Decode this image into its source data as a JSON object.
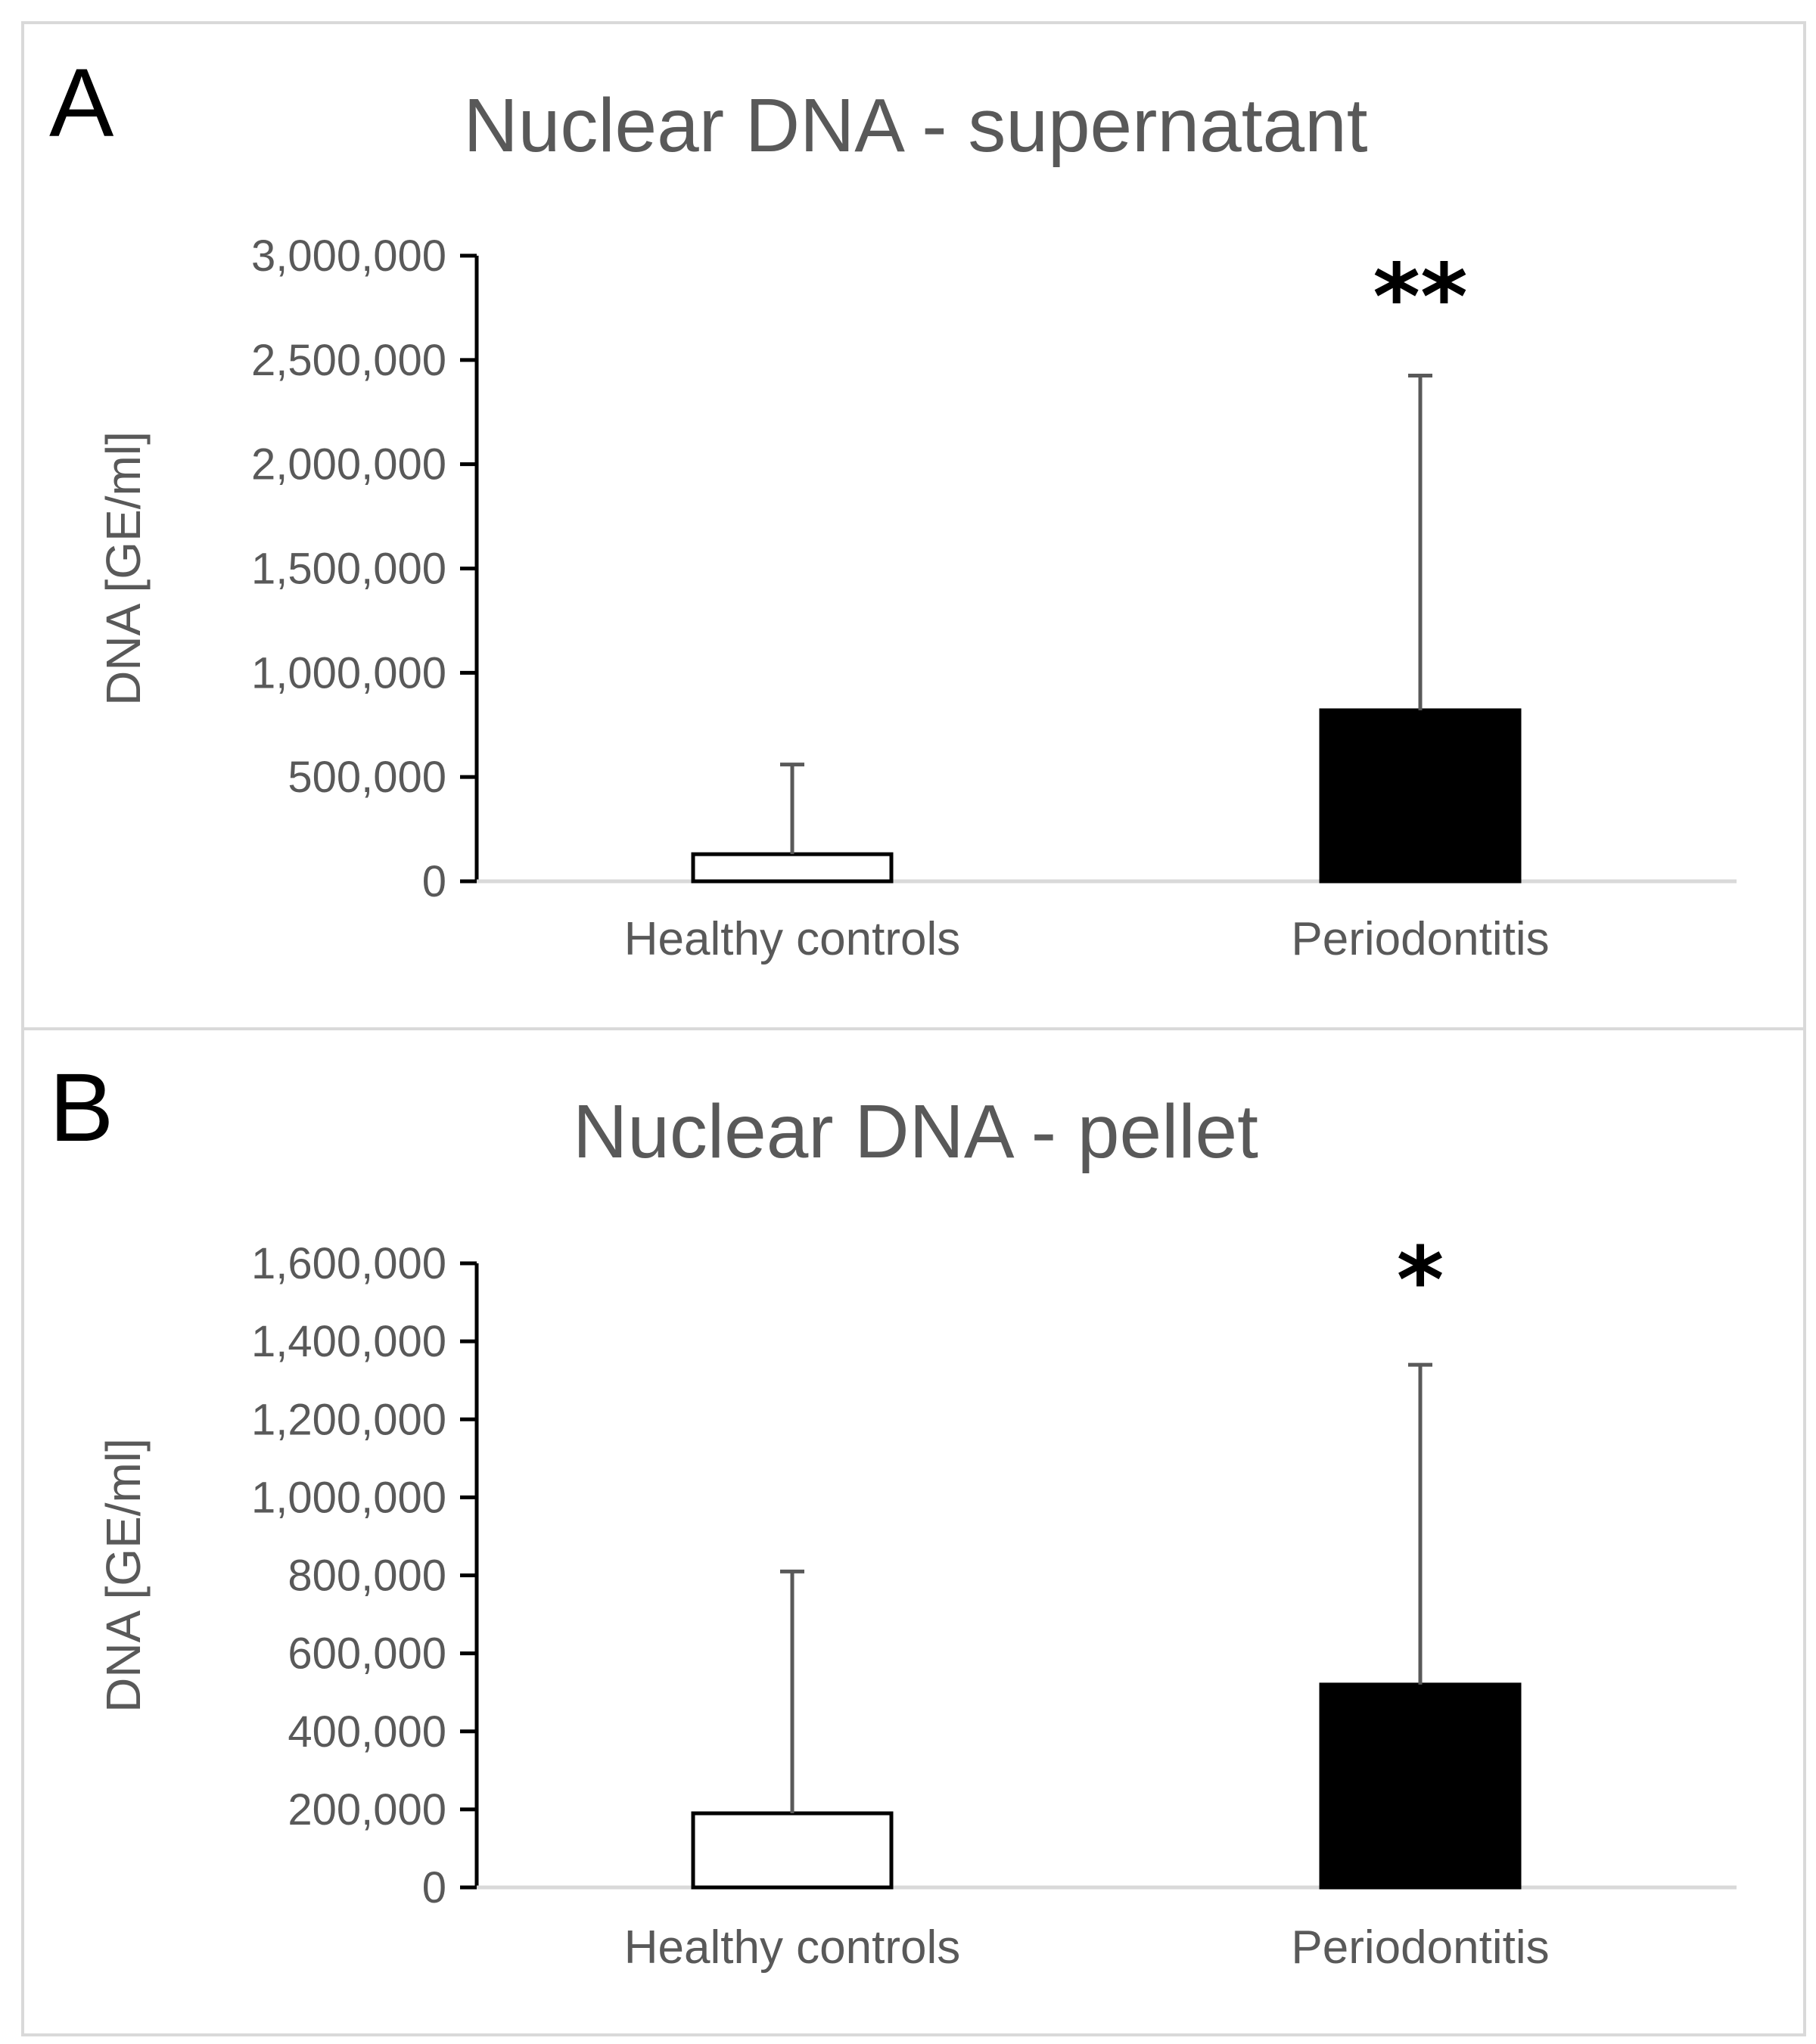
{
  "chart_data": [
    {
      "panel": "A",
      "type": "bar",
      "title": "Nuclear DNA - supernatant",
      "ylabel": "DNA [GE/ml]",
      "xlabel": "",
      "categories": [
        "Healthy controls",
        "Periodontitis"
      ],
      "values": [
        130000,
        820000
      ],
      "error_upper": [
        430000,
        1605000
      ],
      "bar_colors": [
        "#ffffff",
        "#000000"
      ],
      "significance": [
        "",
        "**"
      ],
      "ylim": [
        0,
        3000000
      ],
      "yticks": [
        0,
        500000,
        1000000,
        1500000,
        2000000,
        2500000,
        3000000
      ],
      "ytick_labels": [
        "0",
        "500,000",
        "1,000,000",
        "1,500,000",
        "2,000,000",
        "2,500,000",
        "3,000,000"
      ],
      "grid": false,
      "legend": "none"
    },
    {
      "panel": "B",
      "type": "bar",
      "title": "Nuclear DNA - pellet",
      "ylabel": "DNA [GE/ml]",
      "xlabel": "",
      "categories": [
        "Healthy controls",
        "Periodontitis"
      ],
      "values": [
        190000,
        520000
      ],
      "error_upper": [
        620000,
        820000
      ],
      "bar_colors": [
        "#ffffff",
        "#000000"
      ],
      "significance": [
        "",
        "*"
      ],
      "ylim": [
        0,
        1600000
      ],
      "yticks": [
        0,
        200000,
        400000,
        600000,
        800000,
        1000000,
        1200000,
        1400000,
        1600000
      ],
      "ytick_labels": [
        "0",
        "200,000",
        "400,000",
        "600,000",
        "800,000",
        "1,000,000",
        "1,200,000",
        "1,400,000",
        "1,600,000"
      ],
      "grid": false,
      "legend": "none"
    }
  ],
  "colors": {
    "text": "#595959",
    "axis": "#000000",
    "baseline": "#d9d9d9",
    "error_bar": "#595959",
    "frame": "#d9d9d9"
  }
}
